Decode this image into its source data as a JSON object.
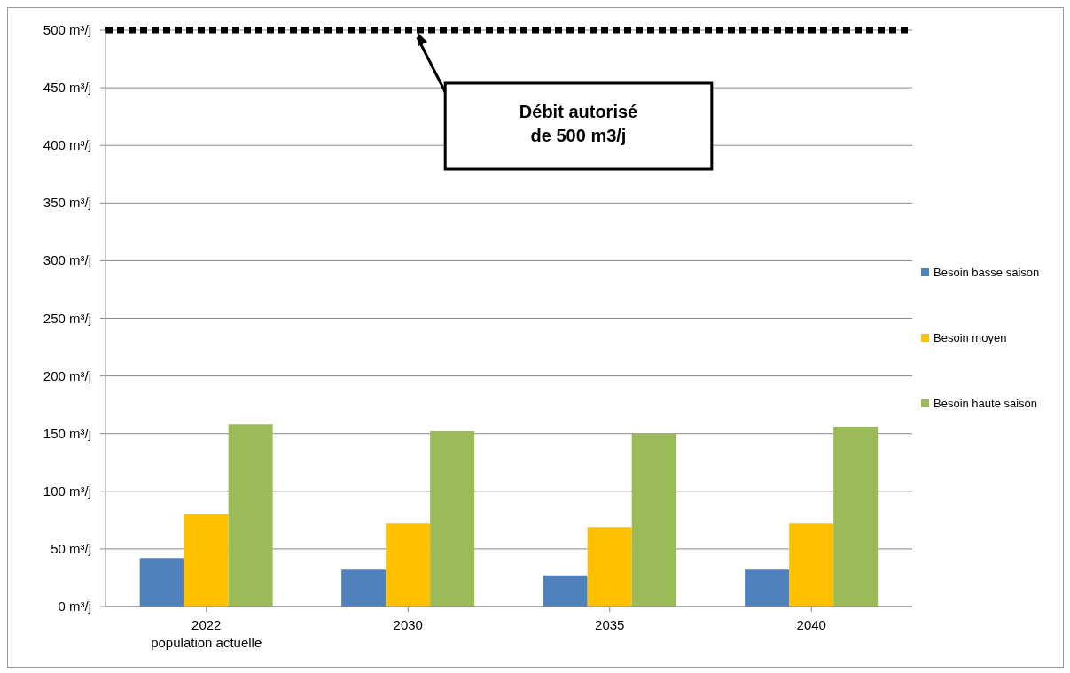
{
  "chart_data": {
    "type": "bar",
    "categories": [
      "2022\npopulation actuelle",
      "2030",
      "2035",
      "2040"
    ],
    "series": [
      {
        "name": "Besoin basse saison",
        "color": "#4f81bd",
        "values": [
          42,
          32,
          27,
          32
        ]
      },
      {
        "name": "Besoin moyen",
        "color": "#ffc000",
        "values": [
          80,
          72,
          69,
          72
        ]
      },
      {
        "name": "Besoin haute saison",
        "color": "#9bbb59",
        "values": [
          158,
          152,
          150,
          156
        ]
      }
    ],
    "ylim": [
      0,
      500
    ],
    "yticks": [
      {
        "value": 0,
        "label": "0 m³/j"
      },
      {
        "value": 50,
        "label": "50 m³/j"
      },
      {
        "value": 100,
        "label": "100 m³/j"
      },
      {
        "value": 150,
        "label": "150 m³/j"
      },
      {
        "value": 200,
        "label": "200 m³/j"
      },
      {
        "value": 250,
        "label": "250 m³/j"
      },
      {
        "value": 300,
        "label": "300 m³/j"
      },
      {
        "value": 350,
        "label": "350 m³/j"
      },
      {
        "value": 400,
        "label": "400 m³/j"
      },
      {
        "value": 450,
        "label": "450 m³/j"
      },
      {
        "value": 500,
        "label": "500 m³/j"
      }
    ],
    "ref_lines": [
      {
        "axis": "y",
        "value": 500,
        "color": "#000000",
        "line_style": "dashed"
      }
    ],
    "annotations": [
      "Débit autorisé\nde 500 m3/j"
    ],
    "grid": "y",
    "legend": "right"
  }
}
